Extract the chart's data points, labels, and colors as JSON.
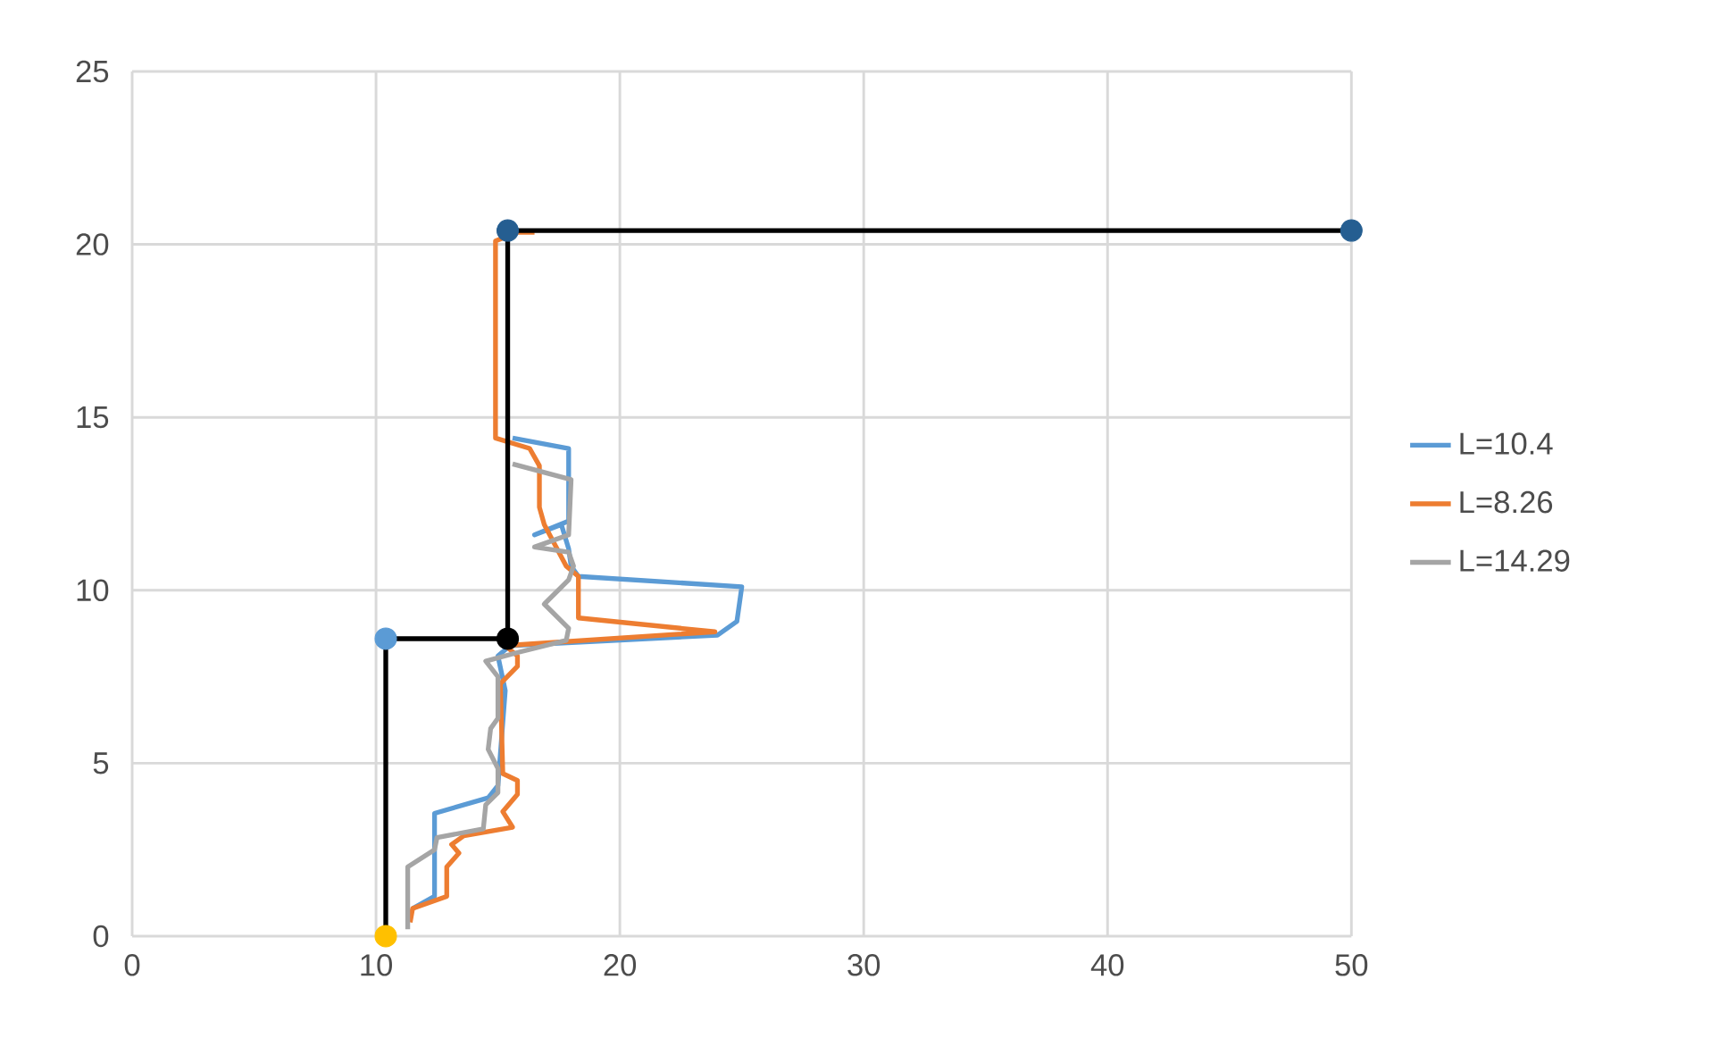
{
  "chart_data": {
    "type": "line",
    "xlim": [
      0,
      50
    ],
    "ylim": [
      0,
      25
    ],
    "xticks": [
      0,
      10,
      20,
      30,
      40,
      50
    ],
    "yticks": [
      0,
      5,
      10,
      15,
      20,
      25
    ],
    "grid": true,
    "legend": "right",
    "line_style": "solid",
    "marker": "none",
    "series": [
      {
        "name": "L=10.4",
        "color": "#5b9bd5",
        "x": [
          11.5,
          11.5,
          12.4,
          12.4,
          14.6,
          15.0,
          15.3,
          15.0,
          15.5,
          24.0,
          24.8,
          25.0,
          18.3,
          18.0,
          17.9,
          17.6,
          16.5,
          17.9,
          17.9,
          15.6
        ],
        "values": [
          0.8,
          0.8,
          1.15,
          3.55,
          4.0,
          4.35,
          7.1,
          8.1,
          8.4,
          8.7,
          9.1,
          10.1,
          10.4,
          10.7,
          11.2,
          11.9,
          11.6,
          12.0,
          14.1,
          14.4
        ]
      },
      {
        "name": "L=8.26",
        "color": "#ed7d31",
        "x": [
          11.4,
          11.5,
          12.9,
          12.9,
          13.4,
          13.1,
          13.6,
          15.6,
          15.2,
          15.8,
          15.8,
          15.2,
          15.1,
          15.8,
          15.8,
          15.3,
          23.9,
          18.3,
          18.3,
          17.8,
          16.9,
          16.7,
          16.7,
          16.3,
          15.6,
          14.9,
          14.9,
          15.8,
          16.5
        ],
        "values": [
          0.4,
          0.8,
          1.15,
          2.0,
          2.4,
          2.65,
          2.9,
          3.15,
          3.6,
          4.1,
          4.5,
          4.7,
          7.3,
          7.8,
          8.1,
          8.4,
          8.8,
          9.2,
          10.4,
          10.7,
          11.9,
          12.4,
          13.6,
          14.1,
          14.25,
          14.4,
          20.1,
          20.35,
          20.35
        ]
      },
      {
        "name": "L=14.29",
        "color": "#a5a5a5",
        "x": [
          11.3,
          11.3,
          12.4,
          12.5,
          14.4,
          14.5,
          15.0,
          15.0,
          14.6,
          14.7,
          15.0,
          15.0,
          14.5,
          15.8,
          17.8,
          17.9,
          16.9,
          17.9,
          18.1,
          17.9,
          16.5,
          17.9,
          18.0,
          15.6
        ],
        "values": [
          0.2,
          2.0,
          2.5,
          2.85,
          3.1,
          3.8,
          4.15,
          4.85,
          5.4,
          6.0,
          6.3,
          7.5,
          7.95,
          8.2,
          8.55,
          8.9,
          9.6,
          10.3,
          10.7,
          11.1,
          11.25,
          11.6,
          13.2,
          13.65
        ]
      },
      {
        "color": "#000000",
        "x": [
          10.4,
          10.4,
          15.4,
          15.4,
          50
        ],
        "values": [
          0,
          8.6,
          8.6,
          20.4,
          20.4
        ]
      },
      {
        "type": "scatter",
        "marker": "circle",
        "x": [
          10.4,
          10.4,
          15.4,
          15.4,
          50
        ],
        "values": [
          0,
          8.6,
          8.6,
          20.4,
          20.4
        ],
        "colors": [
          "#ffc000",
          "#5b9bd5",
          "#000000",
          "#255e91",
          "#255e91"
        ]
      }
    ]
  }
}
